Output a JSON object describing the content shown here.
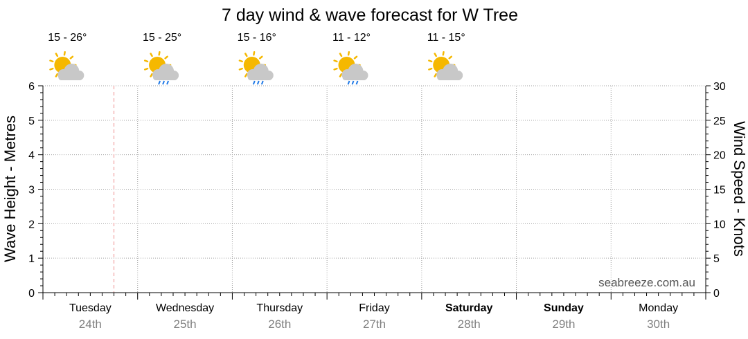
{
  "title": "7 day wind & wave forecast for W Tree",
  "watermark": "seabreeze.com.au",
  "colors": {
    "grid": "#a0a0a0",
    "now_marker": "#f08c8c",
    "date_text": "#808080",
    "sun": "#f5b800",
    "cloud": "#c8c8c8",
    "rain": "#1e78e6"
  },
  "chart_data": {
    "type": "line",
    "title": "7 day wind & wave forecast for W Tree",
    "left_axis": {
      "label": "Wave Height - Metres",
      "range": [
        0,
        6
      ],
      "ticks": [
        "0",
        "1",
        "2",
        "3",
        "4",
        "5",
        "6"
      ]
    },
    "right_axis": {
      "label": "Wind Speed - Knots",
      "range": [
        0,
        30
      ],
      "ticks": [
        "0",
        "5",
        "10",
        "15",
        "20",
        "25",
        "30"
      ]
    },
    "x_range_days": [
      0,
      7
    ],
    "now_marker_day": 0.75,
    "grid": true,
    "series": [],
    "days": [
      {
        "day": "Tuesday",
        "date": "24th",
        "bold": false,
        "temp": "15 - 26°",
        "icon": "partly-cloudy-icon"
      },
      {
        "day": "Wednesday",
        "date": "25th",
        "bold": false,
        "temp": "15 - 25°",
        "icon": "sun-cloud-rain-icon"
      },
      {
        "day": "Thursday",
        "date": "26th",
        "bold": false,
        "temp": "15 - 16°",
        "icon": "sun-cloud-rain-icon"
      },
      {
        "day": "Friday",
        "date": "27th",
        "bold": false,
        "temp": "11 - 12°",
        "icon": "sun-cloud-rain-icon"
      },
      {
        "day": "Saturday",
        "date": "28th",
        "bold": true,
        "temp": "11 - 15°",
        "icon": "partly-cloudy-icon"
      },
      {
        "day": "Sunday",
        "date": "29th",
        "bold": true,
        "temp": "",
        "icon": ""
      },
      {
        "day": "Monday",
        "date": "30th",
        "bold": false,
        "temp": "",
        "icon": ""
      }
    ]
  }
}
